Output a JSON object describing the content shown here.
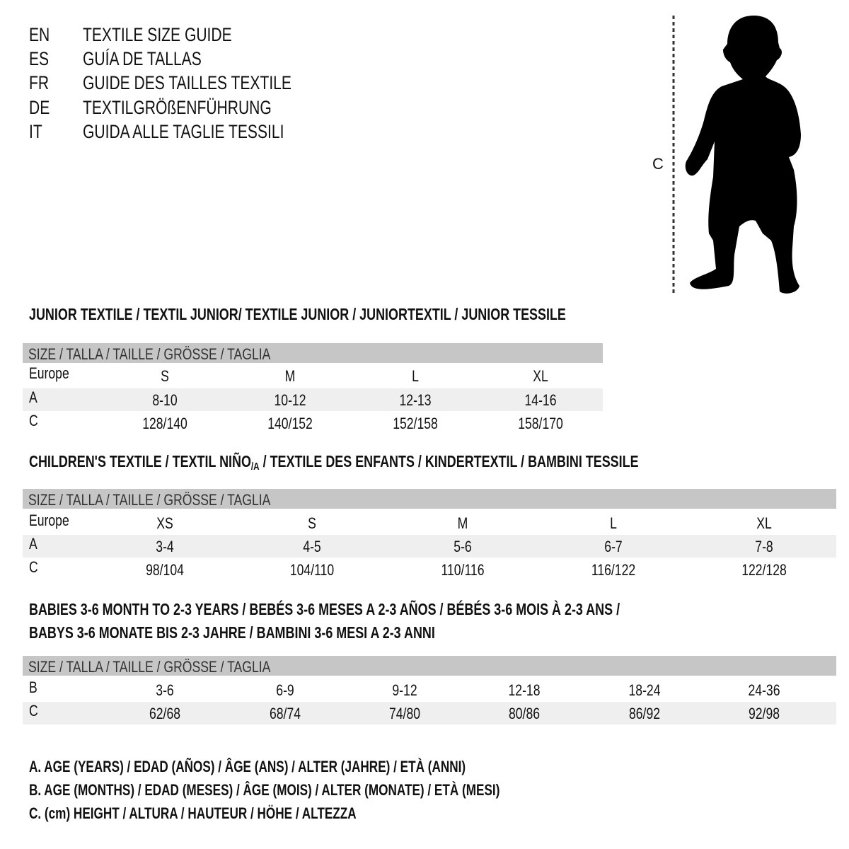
{
  "languages": [
    {
      "code": "EN",
      "title": "TEXTILE SIZE GUIDE"
    },
    {
      "code": "ES",
      "title": "GUÍA DE TALLAS"
    },
    {
      "code": "FR",
      "title": "GUIDE DES TAILLES TEXTILE"
    },
    {
      "code": "DE",
      "title": "TEXTILGRÖßENFÜHRUNG"
    },
    {
      "code": "IT",
      "title": "GUIDA ALLE TAGLIE TESSILI"
    }
  ],
  "figure": {
    "measure_label": "C",
    "icon": "child-silhouette-icon"
  },
  "colors": {
    "band": "#c6c6c6",
    "stripe": "#efefef"
  },
  "tables": [
    {
      "heading": "JUNIOR TEXTILE / TEXTIL JUNIOR/ TEXTILE JUNIOR / JUNIORTEXTIL / JUNIOR TESSILE",
      "band": "SIZE / TALLA / TAILLE / GRÖSSE / TAGLIA",
      "rows": [
        {
          "label": "Europe",
          "cells": [
            "S",
            "M",
            "L",
            "XL"
          ]
        },
        {
          "label": "A",
          "cells": [
            "8-10",
            "10-12",
            "12-13",
            "14-16"
          ]
        },
        {
          "label": "C",
          "cells": [
            "128/140",
            "140/152",
            "152/158",
            "158/170"
          ]
        }
      ]
    },
    {
      "heading_pre": "CHILDREN'S TEXTILE / TEXTIL NIÑO",
      "heading_sub": "/A",
      "heading_post": " / TEXTILE DES ENFANTS / KINDERTEXTIL / BAMBINI TESSILE",
      "band": "SIZE / TALLA / TAILLE / GRÖSSE / TAGLIA",
      "rows": [
        {
          "label": "Europe",
          "cells": [
            "XS",
            "S",
            "M",
            "L",
            "XL"
          ]
        },
        {
          "label": "A",
          "cells": [
            "3-4",
            "4-5",
            "5-6",
            "6-7",
            "7-8"
          ]
        },
        {
          "label": "C",
          "cells": [
            "98/104",
            "104/110",
            "110/116",
            "116/122",
            "122/128"
          ]
        }
      ]
    },
    {
      "heading": "BABIES 3-6 MONTH TO 2-3 YEARS / BEBÉS 3-6 MESES A 2-3 AÑOS / BÉBÉS 3-6 MOIS À 2-3 ANS /",
      "heading2": "BABYS 3-6 MONATE BIS 2-3 JAHRE / BAMBINI 3-6 MESI A 2-3 ANNI",
      "band": "SIZE / TALLA / TAILLE / GRÖSSE / TAGLIA",
      "rows": [
        {
          "label": "B",
          "cells": [
            "3-6",
            "6-9",
            "9-12",
            "12-18",
            "18-24",
            "24-36"
          ]
        },
        {
          "label": "C",
          "cells": [
            "62/68",
            "68/74",
            "74/80",
            "80/86",
            "86/92",
            "92/98"
          ]
        }
      ]
    }
  ],
  "legend": [
    "A. AGE (YEARS) / EDAD (AÑOS) / ÂGE (ANS) / ALTER (JAHRE) / ETÀ (ANNI)",
    "B. AGE (MONTHS) / EDAD (MESES) / ÂGE (MOIS) / ALTER (MONATE) / ETÀ (MESI)",
    "C. (cm) HEIGHT / ALTURA / HAUTEUR / HÖHE / ALTEZZA"
  ]
}
